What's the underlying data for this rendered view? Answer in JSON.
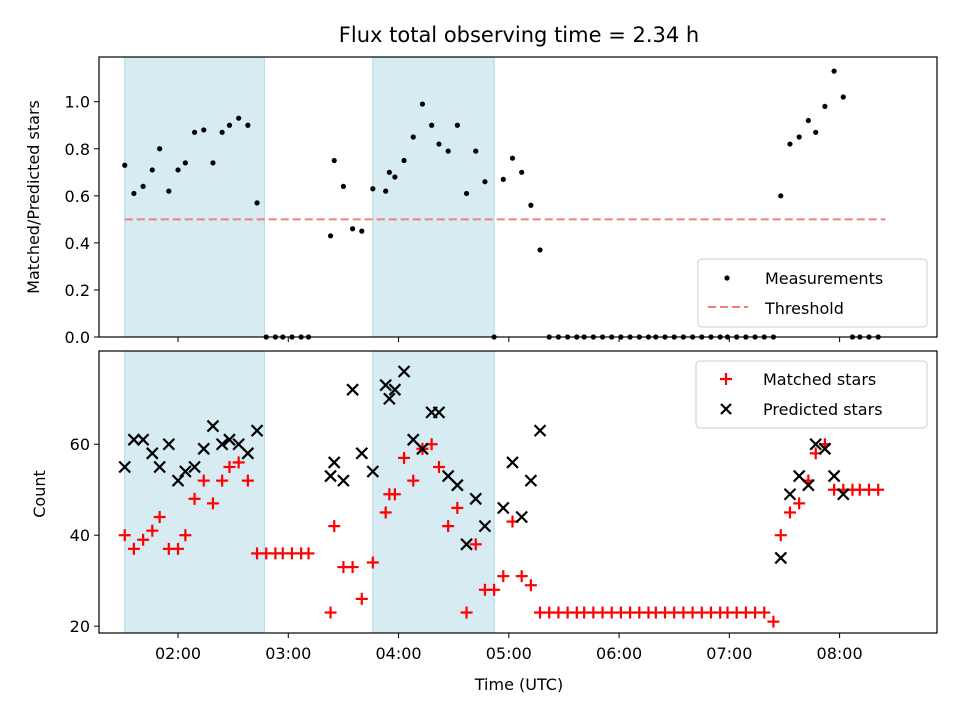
{
  "title": "Flux total observing time = 2.34 h",
  "xlabel": "Time (UTC)",
  "colors": {
    "band": "#add8e6",
    "threshold": "#f08080",
    "matched": "#ff0000",
    "predicted": "#000000",
    "measure": "#000000"
  },
  "chart_data": [
    {
      "type": "scatter",
      "ylabel": "Matched/Predicted stars",
      "ylim": [
        0.0,
        1.19
      ],
      "xlim": [
        "01:17",
        "08:53"
      ],
      "yticks": [
        "0.0",
        "0.2",
        "0.4",
        "0.6",
        "0.8",
        "1.0"
      ],
      "legend": {
        "placement": "lower-right",
        "entries": [
          "Measurements",
          "Threshold"
        ]
      },
      "shaded_intervals": [
        [
          "01:31",
          "02:47"
        ],
        [
          "03:46",
          "04:52"
        ]
      ],
      "threshold": {
        "name": "Threshold",
        "y": 0.5,
        "x_range": [
          "01:31",
          "08:25"
        ]
      },
      "series": [
        {
          "name": "Measurements",
          "points": [
            [
              "01:31",
              0.73
            ],
            [
              "01:36",
              0.61
            ],
            [
              "01:41",
              0.64
            ],
            [
              "01:46",
              0.71
            ],
            [
              "01:50",
              0.8
            ],
            [
              "01:55",
              0.62
            ],
            [
              "02:00",
              0.71
            ],
            [
              "02:04",
              0.74
            ],
            [
              "02:09",
              0.87
            ],
            [
              "02:14",
              0.88
            ],
            [
              "02:19",
              0.74
            ],
            [
              "02:24",
              0.87
            ],
            [
              "02:28",
              0.9
            ],
            [
              "02:33",
              0.93
            ],
            [
              "02:38",
              0.9
            ],
            [
              "02:43",
              0.57
            ],
            [
              "02:48",
              0.0
            ],
            [
              "02:53",
              0.0
            ],
            [
              "02:57",
              0.0
            ],
            [
              "03:02",
              0.0
            ],
            [
              "03:07",
              0.0
            ],
            [
              "03:11",
              0.0
            ],
            [
              "03:23",
              0.43
            ],
            [
              "03:25",
              0.75
            ],
            [
              "03:30",
              0.64
            ],
            [
              "03:35",
              0.46
            ],
            [
              "03:40",
              0.45
            ],
            [
              "03:46",
              0.63
            ],
            [
              "03:53",
              0.62
            ],
            [
              "03:55",
              0.7
            ],
            [
              "03:58",
              0.68
            ],
            [
              "04:03",
              0.75
            ],
            [
              "04:08",
              0.85
            ],
            [
              "04:13",
              0.99
            ],
            [
              "04:18",
              0.9
            ],
            [
              "04:22",
              0.82
            ],
            [
              "04:27",
              0.79
            ],
            [
              "04:32",
              0.9
            ],
            [
              "04:37",
              0.61
            ],
            [
              "04:42",
              0.79
            ],
            [
              "04:47",
              0.66
            ],
            [
              "04:52",
              0.0
            ],
            [
              "04:57",
              0.67
            ],
            [
              "05:02",
              0.76
            ],
            [
              "05:07",
              0.7
            ],
            [
              "05:12",
              0.56
            ],
            [
              "05:17",
              0.37
            ],
            [
              "05:22",
              0.0
            ],
            [
              "05:27",
              0.0
            ],
            [
              "05:32",
              0.0
            ],
            [
              "05:37",
              0.0
            ],
            [
              "05:41",
              0.0
            ],
            [
              "05:46",
              0.0
            ],
            [
              "05:51",
              0.0
            ],
            [
              "05:56",
              0.0
            ],
            [
              "06:01",
              0.0
            ],
            [
              "06:06",
              0.0
            ],
            [
              "06:11",
              0.0
            ],
            [
              "06:16",
              0.0
            ],
            [
              "06:20",
              0.0
            ],
            [
              "06:25",
              0.0
            ],
            [
              "06:30",
              0.0
            ],
            [
              "06:35",
              0.0
            ],
            [
              "06:40",
              0.0
            ],
            [
              "06:45",
              0.0
            ],
            [
              "06:50",
              0.0
            ],
            [
              "06:55",
              0.0
            ],
            [
              "06:59",
              0.0
            ],
            [
              "07:04",
              0.0
            ],
            [
              "07:09",
              0.0
            ],
            [
              "07:14",
              0.0
            ],
            [
              "07:19",
              0.0
            ],
            [
              "07:24",
              0.0
            ],
            [
              "07:28",
              0.6
            ],
            [
              "07:33",
              0.82
            ],
            [
              "07:38",
              0.85
            ],
            [
              "07:43",
              0.92
            ],
            [
              "07:47",
              0.87
            ],
            [
              "07:52",
              0.98
            ],
            [
              "07:57",
              1.13
            ],
            [
              "08:02",
              1.02
            ],
            [
              "08:07",
              0.0
            ],
            [
              "08:11",
              0.0
            ],
            [
              "08:16",
              0.0
            ],
            [
              "08:21",
              0.0
            ]
          ]
        }
      ]
    },
    {
      "type": "scatter",
      "ylabel": "Count",
      "ylim": [
        18.5,
        80.5
      ],
      "xlim": [
        "01:17",
        "08:53"
      ],
      "xticks": [
        "02:00",
        "03:00",
        "04:00",
        "05:00",
        "06:00",
        "07:00",
        "08:00"
      ],
      "yticks": [
        "20",
        "40",
        "60"
      ],
      "legend": {
        "placement": "upper-right",
        "entries": [
          "Matched stars",
          "Predicted stars"
        ]
      },
      "shaded_intervals": [
        [
          "01:31",
          "02:47"
        ],
        [
          "03:46",
          "04:52"
        ]
      ],
      "series": [
        {
          "name": "Matched stars",
          "marker": "plus",
          "points": [
            [
              "01:31",
              40
            ],
            [
              "01:36",
              37
            ],
            [
              "01:41",
              39
            ],
            [
              "01:46",
              41
            ],
            [
              "01:50",
              44
            ],
            [
              "01:55",
              37
            ],
            [
              "02:00",
              37
            ],
            [
              "02:04",
              40
            ],
            [
              "02:09",
              48
            ],
            [
              "02:14",
              52
            ],
            [
              "02:19",
              47
            ],
            [
              "02:24",
              52
            ],
            [
              "02:28",
              55
            ],
            [
              "02:33",
              56
            ],
            [
              "02:38",
              52
            ],
            [
              "02:43",
              36
            ],
            [
              "02:48",
              36
            ],
            [
              "02:53",
              36
            ],
            [
              "02:57",
              36
            ],
            [
              "03:02",
              36
            ],
            [
              "03:07",
              36
            ],
            [
              "03:11",
              36
            ],
            [
              "03:23",
              23
            ],
            [
              "03:25",
              42
            ],
            [
              "03:30",
              33
            ],
            [
              "03:35",
              33
            ],
            [
              "03:40",
              26
            ],
            [
              "03:46",
              34
            ],
            [
              "03:53",
              45
            ],
            [
              "03:55",
              49
            ],
            [
              "03:58",
              49
            ],
            [
              "04:03",
              57
            ],
            [
              "04:08",
              52
            ],
            [
              "04:13",
              59
            ],
            [
              "04:18",
              60
            ],
            [
              "04:22",
              55
            ],
            [
              "04:27",
              42
            ],
            [
              "04:32",
              46
            ],
            [
              "04:37",
              23
            ],
            [
              "04:42",
              38
            ],
            [
              "04:47",
              28
            ],
            [
              "04:52",
              28
            ],
            [
              "04:57",
              31
            ],
            [
              "05:02",
              43
            ],
            [
              "05:07",
              31
            ],
            [
              "05:12",
              29
            ],
            [
              "05:17",
              23
            ],
            [
              "05:22",
              23
            ],
            [
              "05:27",
              23
            ],
            [
              "05:32",
              23
            ],
            [
              "05:37",
              23
            ],
            [
              "05:41",
              23
            ],
            [
              "05:46",
              23
            ],
            [
              "05:51",
              23
            ],
            [
              "05:56",
              23
            ],
            [
              "06:01",
              23
            ],
            [
              "06:06",
              23
            ],
            [
              "06:11",
              23
            ],
            [
              "06:16",
              23
            ],
            [
              "06:20",
              23
            ],
            [
              "06:25",
              23
            ],
            [
              "06:30",
              23
            ],
            [
              "06:35",
              23
            ],
            [
              "06:40",
              23
            ],
            [
              "06:45",
              23
            ],
            [
              "06:50",
              23
            ],
            [
              "06:55",
              23
            ],
            [
              "06:59",
              23
            ],
            [
              "07:04",
              23
            ],
            [
              "07:09",
              23
            ],
            [
              "07:14",
              23
            ],
            [
              "07:19",
              23
            ],
            [
              "07:24",
              21
            ],
            [
              "07:28",
              40
            ],
            [
              "07:33",
              45
            ],
            [
              "07:38",
              47
            ],
            [
              "07:43",
              52
            ],
            [
              "07:47",
              58
            ],
            [
              "07:52",
              60
            ],
            [
              "07:57",
              50
            ],
            [
              "08:02",
              50
            ],
            [
              "08:07",
              50
            ],
            [
              "08:11",
              50
            ],
            [
              "08:16",
              50
            ],
            [
              "08:21",
              50
            ]
          ]
        },
        {
          "name": "Predicted stars",
          "marker": "x",
          "points": [
            [
              "01:31",
              55
            ],
            [
              "01:36",
              61
            ],
            [
              "01:41",
              61
            ],
            [
              "01:46",
              58
            ],
            [
              "01:50",
              55
            ],
            [
              "01:55",
              60
            ],
            [
              "02:00",
              52
            ],
            [
              "02:04",
              54
            ],
            [
              "02:09",
              55
            ],
            [
              "02:14",
              59
            ],
            [
              "02:19",
              64
            ],
            [
              "02:24",
              60
            ],
            [
              "02:28",
              61
            ],
            [
              "02:33",
              60
            ],
            [
              "02:38",
              58
            ],
            [
              "02:43",
              63
            ],
            [
              "03:23",
              53
            ],
            [
              "03:25",
              56
            ],
            [
              "03:30",
              52
            ],
            [
              "03:35",
              72
            ],
            [
              "03:40",
              58
            ],
            [
              "03:46",
              54
            ],
            [
              "03:53",
              73
            ],
            [
              "03:55",
              70
            ],
            [
              "03:58",
              72
            ],
            [
              "04:03",
              76
            ],
            [
              "04:08",
              61
            ],
            [
              "04:13",
              59
            ],
            [
              "04:18",
              67
            ],
            [
              "04:22",
              67
            ],
            [
              "04:27",
              53
            ],
            [
              "04:32",
              51
            ],
            [
              "04:37",
              38
            ],
            [
              "04:42",
              48
            ],
            [
              "04:47",
              42
            ],
            [
              "04:57",
              46
            ],
            [
              "05:02",
              56
            ],
            [
              "05:07",
              44
            ],
            [
              "05:12",
              52
            ],
            [
              "05:17",
              63
            ],
            [
              "07:28",
              35
            ],
            [
              "07:33",
              49
            ],
            [
              "07:38",
              53
            ],
            [
              "07:43",
              51
            ],
            [
              "07:47",
              60
            ],
            [
              "07:52",
              59
            ],
            [
              "07:57",
              53
            ],
            [
              "08:02",
              49
            ]
          ]
        }
      ]
    }
  ]
}
